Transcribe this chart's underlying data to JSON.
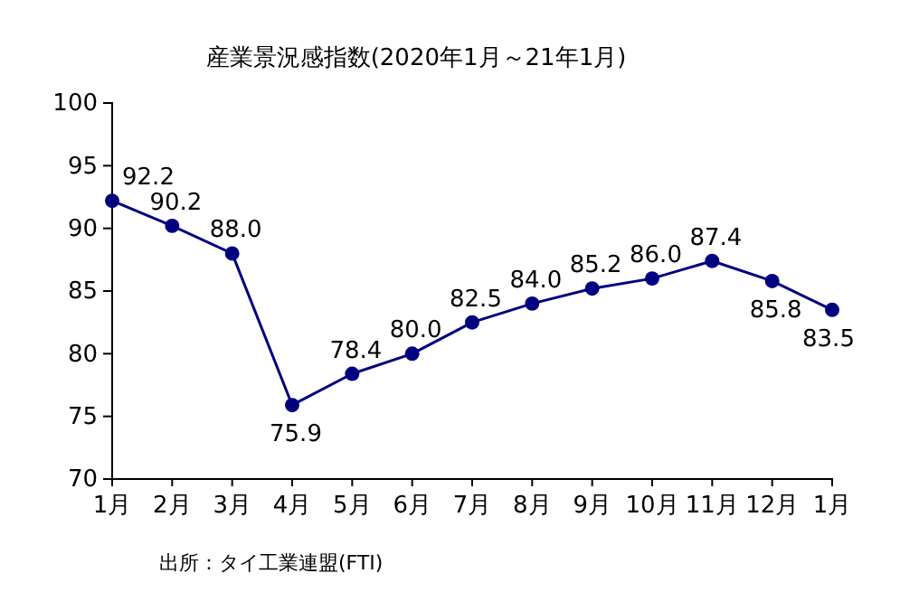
{
  "chart_data": {
    "type": "line",
    "title": "産業景況感指数(2020年1月～21年1月)",
    "categories": [
      "1月",
      "2月",
      "3月",
      "4月",
      "5月",
      "6月",
      "7月",
      "8月",
      "9月",
      "10月",
      "11月",
      "12月",
      "1月"
    ],
    "series": [
      {
        "color": "#000080",
        "values": [
          92.2,
          90.2,
          88.0,
          75.9,
          78.4,
          80.0,
          82.5,
          84.0,
          85.2,
          86.0,
          87.4,
          85.8,
          83.5
        ],
        "value_labels": [
          "92.2",
          "90.2",
          "88.0",
          "75.9",
          "78.4",
          "80.0",
          "82.5",
          "84.0",
          "85.2",
          "86.0",
          "87.4",
          "85.8",
          "83.5"
        ]
      }
    ],
    "ylim": [
      70,
      100
    ],
    "yticks": [
      70,
      75,
      80,
      85,
      90,
      95,
      100
    ],
    "grid": false,
    "marker": "circle",
    "line_style": "solid",
    "annotations": [
      "出所：タイ工業連盟(FTI)"
    ]
  }
}
